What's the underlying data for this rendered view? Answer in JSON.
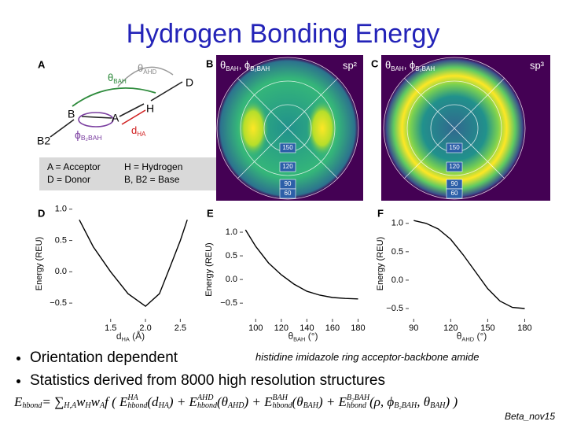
{
  "title": "Hydrogen Bonding Energy",
  "panel_a": {
    "label": "A",
    "theta_ahd": {
      "main": "θ",
      "sub": "AHD"
    },
    "theta_bah": {
      "main": "θ",
      "sub": "BAH"
    },
    "atom_d": "D",
    "atom_h": "H",
    "atom_b": "B",
    "atom_a": "A",
    "atom_b2": "B2",
    "phi": {
      "main": "ϕ",
      "sub": "B₂BAH"
    },
    "dist": {
      "main": "d",
      "sub": "HA"
    },
    "legend": [
      "A = Acceptor",
      "H = Hydrogen",
      "D = Donor",
      "B, B2 = Base"
    ]
  },
  "polar_panels": [
    {
      "label": "B",
      "heading": [
        {
          "main": "θ",
          "sub": "BAH"
        },
        {
          "main": ", ϕ",
          "sub": "B₂BAH"
        }
      ],
      "hybrid": "sp²",
      "ring_labels": [
        "150",
        "120",
        "90",
        "60"
      ]
    },
    {
      "label": "C",
      "heading": [
        {
          "main": "θ",
          "sub": "BAH"
        },
        {
          "main": ", ϕ",
          "sub": "B₂BAH"
        }
      ],
      "hybrid": "sp³",
      "ring_labels": [
        "150",
        "120",
        "90",
        "60"
      ]
    }
  ],
  "chart_data": [
    {
      "type": "line",
      "panel": "D",
      "ylabel": "Energy (REU)",
      "xlabel": {
        "main": "d",
        "sub": "HA",
        "unit": " (Å)"
      },
      "x": [
        1.05,
        1.25,
        1.5,
        1.75,
        2.0,
        2.2,
        2.35,
        2.5,
        2.6
      ],
      "values": [
        0.83,
        0.4,
        0.0,
        -0.35,
        -0.55,
        -0.35,
        0.07,
        0.5,
        0.83
      ],
      "color": "#000000",
      "xlim": [
        0.95,
        2.62
      ],
      "ylim": [
        -0.75,
        1.01
      ],
      "xticks": [
        1.5,
        {
          "value": 2,
          "label": "2.0"
        },
        2.5
      ],
      "yticks": [
        {
          "value": -0.5,
          "label": "−0.5"
        },
        {
          "value": 0,
          "label": "0.0"
        },
        0.5,
        {
          "value": 1,
          "label": "1.0"
        }
      ]
    },
    {
      "type": "line",
      "panel": "E",
      "ylabel": "Energy (REU)",
      "xlabel": {
        "main": "θ",
        "sub": "BAH",
        "unit": " (°)"
      },
      "x": [
        92,
        100,
        110,
        120,
        130,
        140,
        150,
        160,
        170,
        180
      ],
      "values": [
        1.05,
        0.7,
        0.35,
        0.1,
        -0.1,
        -0.25,
        -0.33,
        -0.38,
        -0.4,
        -0.41
      ],
      "color": "#000000",
      "xlim": [
        90,
        184
      ],
      "ylim": [
        -0.83,
        1.25
      ],
      "xticks": [
        100,
        120,
        140,
        160,
        180
      ],
      "yticks": [
        {
          "value": -0.5,
          "label": "−0.5"
        },
        {
          "value": 0,
          "label": "0.0"
        },
        0.5,
        {
          "value": 1,
          "label": "1.0"
        }
      ]
    },
    {
      "type": "line",
      "panel": "F",
      "ylabel": "Energy (REU)",
      "xlabel": {
        "main": "θ",
        "sub": "AHD",
        "unit": " (°)"
      },
      "x": [
        90,
        100,
        110,
        120,
        130,
        140,
        150,
        160,
        170,
        180
      ],
      "values": [
        1.05,
        1.0,
        0.9,
        0.72,
        0.45,
        0.15,
        -0.15,
        -0.37,
        -0.48,
        -0.5
      ],
      "color": "#000000",
      "xlim": [
        86,
        188
      ],
      "ylim": [
        -0.68,
        1.26
      ],
      "xticks": [
        90,
        120,
        150,
        180
      ],
      "yticks": [
        {
          "value": -0.5,
          "label": "−0.5"
        },
        {
          "value": 0,
          "label": "0.0"
        },
        0.5,
        {
          "value": 1,
          "label": "1.0"
        }
      ]
    }
  ],
  "caption": "histidine imidazole ring acceptor-backbone amide",
  "bullets": [
    "Orientation dependent",
    "Statistics derived from 8000 high resolution structures"
  ],
  "formula": [
    {
      "text": "E",
      "sub": "hbond"
    },
    {
      "text": " = ∑",
      "sub": "H,A"
    },
    {
      "text": " w",
      "sub": "H"
    },
    {
      "text": " w",
      "sub": "A"
    },
    {
      "text": " f ( E",
      "sup": "HA",
      "sub": "hbond"
    },
    {
      "text": "(d",
      "sub": "HA"
    },
    {
      "text": ") + E",
      "sup": "AHD",
      "sub": "hbond"
    },
    {
      "text": "(θ",
      "sub": "AHD"
    },
    {
      "text": ") + E",
      "sup": "BAH",
      "sub": "hbond"
    },
    {
      "text": "(θ",
      "sub": "BAH"
    },
    {
      "text": ") + E",
      "sup": "B₂BAH",
      "sub": "hbond"
    },
    {
      "text": "(ρ, ϕ",
      "sub": "B₂BAH"
    },
    {
      "text": ", θ",
      "sub": "BAH"
    },
    {
      "text": ") )"
    }
  ],
  "footer": "Beta_nov15"
}
